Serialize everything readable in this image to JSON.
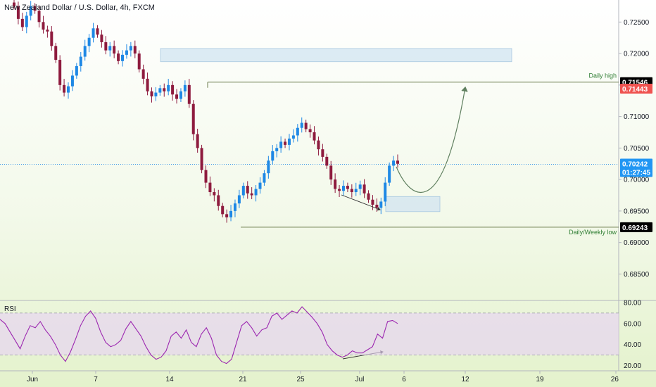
{
  "title": "New Zealand Dollar / U.S. Dollar, 4h, FXCM",
  "chart_data": [
    {
      "type": "candlestick",
      "title": "New Zealand Dollar / U.S. Dollar, 4h, FXCM",
      "symbol": "NZDUSD",
      "timeframe": "4h",
      "source": "FXCM",
      "y_ticks": [
        "0.72500",
        "0.72000",
        "0.71500",
        "0.71000",
        "0.70500",
        "0.70000",
        "0.69500",
        "0.69000",
        "0.68500"
      ],
      "ylim": [
        0.6808,
        0.7285
      ],
      "x_ticks": [
        "Jun",
        "7",
        "14",
        "21",
        "25",
        "Jul",
        "6",
        "12",
        "19",
        "26"
      ],
      "closes": [
        0.7275,
        0.7255,
        0.7242,
        0.726,
        0.7275,
        0.7268,
        0.725,
        0.7238,
        0.7235,
        0.7212,
        0.719,
        0.715,
        0.7138,
        0.7148,
        0.7165,
        0.718,
        0.7195,
        0.7212,
        0.7225,
        0.724,
        0.723,
        0.7218,
        0.7205,
        0.7212,
        0.72,
        0.7188,
        0.7198,
        0.7205,
        0.7212,
        0.72,
        0.7175,
        0.716,
        0.714,
        0.7132,
        0.7138,
        0.7145,
        0.714,
        0.715,
        0.7135,
        0.7128,
        0.714,
        0.715,
        0.712,
        0.7072,
        0.705,
        0.7015,
        0.6995,
        0.698,
        0.6975,
        0.6958,
        0.6945,
        0.694,
        0.695,
        0.6962,
        0.6975,
        0.699,
        0.6978,
        0.6975,
        0.6985,
        0.6995,
        0.701,
        0.703,
        0.7045,
        0.705,
        0.706,
        0.7055,
        0.7065,
        0.707,
        0.7082,
        0.709,
        0.708,
        0.7075,
        0.7062,
        0.7048,
        0.7036,
        0.7022,
        0.7,
        0.6985,
        0.6982,
        0.699,
        0.6985,
        0.698,
        0.6985,
        0.6992,
        0.6978,
        0.6968,
        0.696,
        0.6955,
        0.6965,
        0.6995,
        0.7022,
        0.703,
        0.7025
      ],
      "last_price": "0.70242",
      "countdown": "01:27:45",
      "price_labels": [
        {
          "text": "0.71546",
          "kind": "daily-high"
        },
        {
          "text": "0.71443",
          "kind": "bid"
        },
        {
          "text": "0.70242",
          "kind": "last"
        },
        {
          "text": "0.69243",
          "kind": "daily-weekly-low"
        }
      ],
      "annotations": [
        {
          "text": "Daily high",
          "price": 0.71546
        },
        {
          "text": "Daily/Weekly low",
          "price": 0.69243
        }
      ],
      "zones": [
        {
          "name": "supply-zone",
          "low": 0.7187,
          "high": 0.7208,
          "color": "#cfe3f1"
        },
        {
          "name": "demand-zone",
          "low": 0.6949,
          "high": 0.6973,
          "color": "#cfe3f1"
        }
      ],
      "colors": {
        "up": "#1e88e5",
        "down": "#8e1b3e",
        "projection": "#5f7f5f",
        "level": "#6b7b4b"
      }
    },
    {
      "type": "line",
      "title": "RSI",
      "y_ticks": [
        "80.00",
        "60.00",
        "40.00",
        "20.00"
      ],
      "ylim": [
        15,
        82
      ],
      "band": [
        30,
        70
      ],
      "values": [
        64,
        60,
        52,
        44,
        36,
        48,
        58,
        56,
        62,
        54,
        48,
        40,
        30,
        24,
        33,
        45,
        58,
        67,
        72,
        65,
        52,
        42,
        38,
        40,
        44,
        55,
        62,
        55,
        48,
        38,
        30,
        26,
        28,
        34,
        48,
        52,
        46,
        54,
        42,
        38,
        50,
        56,
        46,
        30,
        24,
        22,
        26,
        42,
        58,
        62,
        56,
        48,
        54,
        56,
        67,
        70,
        64,
        68,
        72,
        70,
        76,
        71,
        66,
        60,
        52,
        40,
        34,
        30,
        28,
        30,
        34,
        32,
        32,
        35,
        38,
        50,
        46,
        62,
        63,
        60
      ],
      "color": "#9c27b0",
      "band_color": "#e7d3f2"
    }
  ]
}
